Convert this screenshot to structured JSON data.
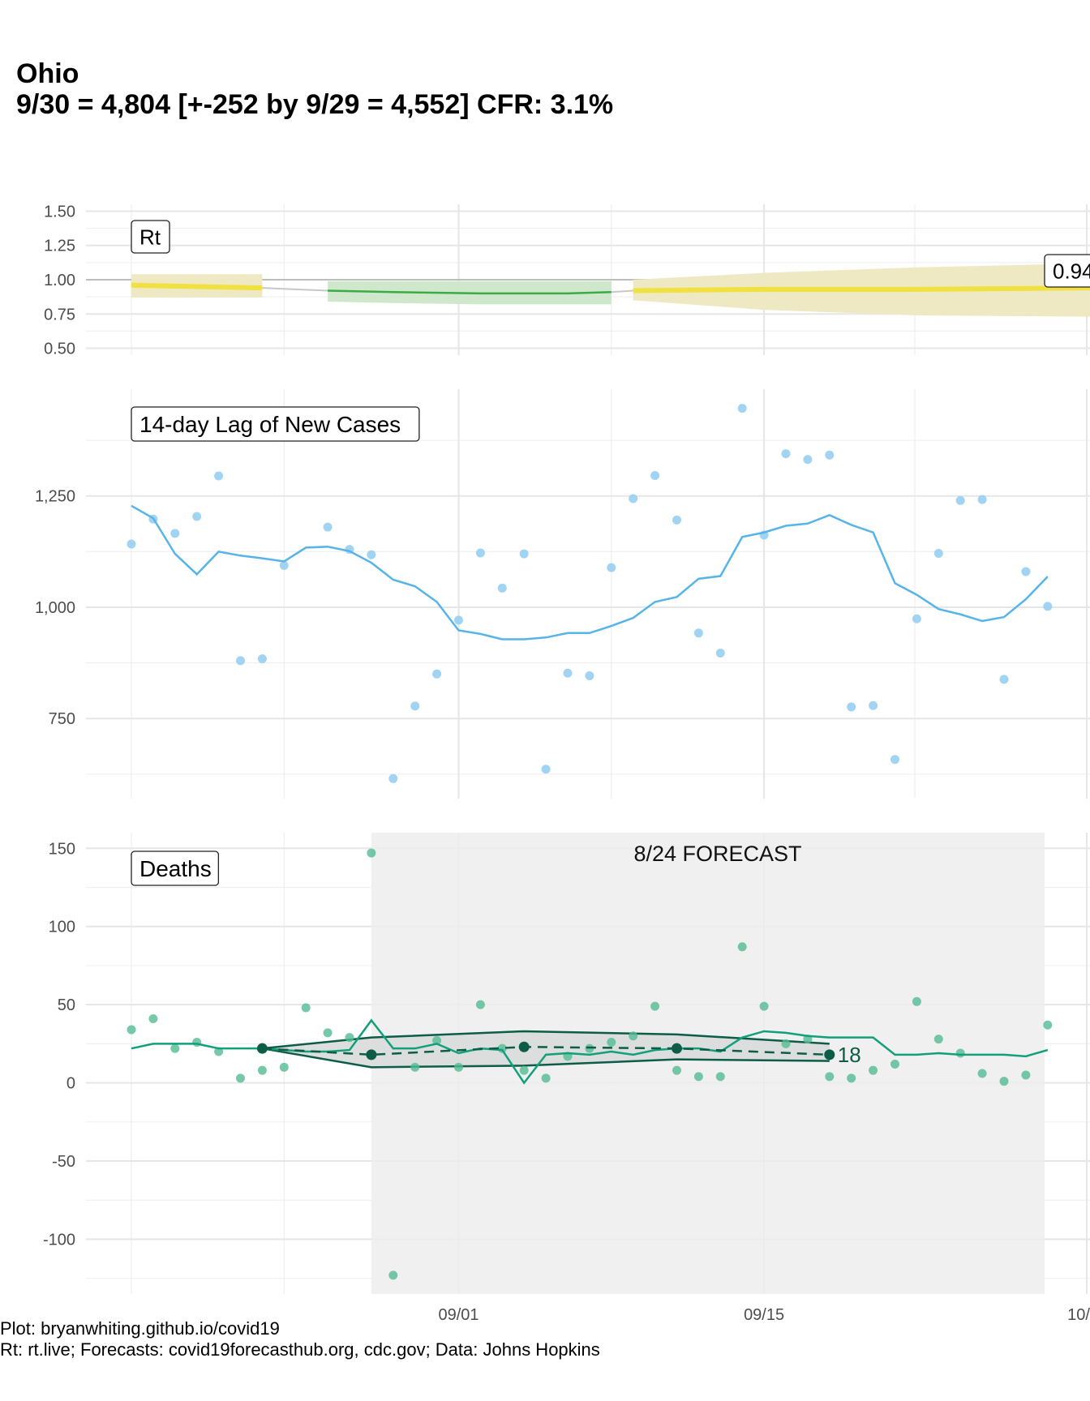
{
  "title": "Ohio",
  "subtitle": "9/30 = 4,804 [+-252 by 9/29 = 4,552] CFR: 3.1%",
  "caption_line1": "Plot: bryanwhiting.github.io/covid19",
  "caption_line2": "Rt: rt.live; Forecasts: covid19forecasthub.org, cdc.gov; Data: Johns Hopkins",
  "colors": {
    "rt_yellow": "#f0e040",
    "rt_yellow_band": "#efe9c3",
    "rt_green": "#3bab45",
    "rt_green_band": "#cfe8cc",
    "rt_gray": "#c8c8c8",
    "cases": "#56b4e9",
    "cases_points": "#8fcdf0",
    "deaths": "#12a07a",
    "deaths_points": "#52bb93",
    "forecast": "#0d5c45",
    "forecast_band": "#d8dcda",
    "forecast_region": "#f0f0f0",
    "grid": "#e6e6e6"
  },
  "chart_data": [
    {
      "type": "line",
      "panel_label": "Rt",
      "end_label": "0.94",
      "x_start": "08/17",
      "ylim": [
        0.5,
        1.5
      ],
      "yticks": [
        "0.50",
        "0.75",
        "1.00",
        "1.25",
        "1.50"
      ],
      "reference_line": 1.0,
      "segments": [
        {
          "status": "uncertain",
          "color": "yellow",
          "x": [
            "08/17",
            "08/23"
          ],
          "y": [
            0.96,
            0.94
          ],
          "lower": [
            0.87,
            0.87
          ],
          "upper": [
            1.04,
            1.04
          ]
        },
        {
          "status": "gap",
          "color": "gray",
          "x": [
            "08/23",
            "08/26"
          ],
          "y": [
            0.94,
            0.92
          ]
        },
        {
          "status": "declining",
          "color": "green",
          "x": [
            "08/26",
            "08/29",
            "09/02",
            "09/06",
            "09/08"
          ],
          "y": [
            0.92,
            0.91,
            0.9,
            0.9,
            0.91
          ],
          "lower": [
            0.84,
            0.83,
            0.82,
            0.82,
            0.82
          ],
          "upper": [
            0.99,
            0.99,
            0.99,
            0.99,
            0.99
          ]
        },
        {
          "status": "gap",
          "color": "gray",
          "x": [
            "09/08",
            "09/09"
          ],
          "y": [
            0.91,
            0.92
          ]
        },
        {
          "status": "uncertain",
          "color": "yellow",
          "x": [
            "09/09",
            "09/15",
            "09/22",
            "09/30"
          ],
          "y": [
            0.92,
            0.93,
            0.93,
            0.94
          ],
          "lower": [
            0.85,
            0.78,
            0.74,
            0.73
          ],
          "upper": [
            1.0,
            1.05,
            1.09,
            1.12
          ]
        }
      ]
    },
    {
      "type": "line",
      "panel_label": "14-day Lag of New Cases",
      "ylim": [
        570,
        1490
      ],
      "yticks": [
        "750",
        "1,000",
        "1,250"
      ],
      "x_start": "08/17",
      "points": [
        1142,
        1198,
        1166,
        1204,
        1295,
        880,
        884,
        1094,
        null,
        1180,
        1130,
        1118,
        615,
        778,
        850,
        971,
        1122,
        1043,
        1120,
        636,
        852,
        846,
        1089,
        1244,
        1296,
        1196,
        942,
        897,
        1447,
        1162,
        1345,
        1332,
        1342,
        776,
        779,
        658,
        974,
        1121,
        1240,
        1242,
        838,
        1080,
        1002
      ],
      "line": [
        1228,
        1200,
        1120,
        1074,
        1125,
        1116,
        1110,
        1103,
        1134,
        1136,
        1126,
        1100,
        1062,
        1047,
        1012,
        948,
        940,
        928,
        928,
        932,
        942,
        942,
        958,
        976,
        1012,
        1023,
        1064,
        1070,
        1158,
        1168,
        1183,
        1188,
        1207,
        1185,
        1168,
        1054,
        1028,
        996,
        984,
        969,
        978,
        1018,
        1069
      ]
    },
    {
      "type": "line",
      "panel_label": "Deaths",
      "annotation": "8/24 FORECAST",
      "forecast_end_label": "18",
      "ylim": [
        -135,
        160
      ],
      "yticks": [
        "-100",
        "-50",
        "0",
        "50",
        "100",
        "150"
      ],
      "x_start": "08/17",
      "x_ticks": [
        "09/01",
        "09/15",
        "10/"
      ],
      "forecast_region": [
        "08/28",
        "09/28"
      ],
      "points": [
        34,
        41,
        22,
        26,
        20,
        3,
        8,
        10,
        48,
        32,
        29,
        147,
        -123,
        10,
        27,
        10,
        50,
        22,
        8,
        3,
        17,
        22,
        26,
        30,
        49,
        8,
        4,
        4,
        87,
        49,
        25,
        28,
        4,
        3,
        8,
        12,
        52,
        28,
        19,
        6,
        1,
        5,
        37
      ],
      "line": [
        22,
        25,
        25,
        25,
        22,
        22,
        22,
        21,
        20,
        20,
        21,
        40,
        22,
        22,
        25,
        19,
        22,
        21,
        0,
        18,
        19,
        18,
        20,
        18,
        21,
        22,
        22,
        20,
        29,
        33,
        32,
        30,
        29,
        29,
        29,
        18,
        18,
        19,
        18,
        18,
        18,
        17,
        21
      ],
      "forecast": {
        "x": [
          "08/23",
          "08/28",
          "09/04",
          "09/11",
          "09/18"
        ],
        "y": [
          22,
          18,
          23,
          22,
          18
        ],
        "lower": [
          22,
          10,
          11,
          15,
          14
        ],
        "upper": [
          22,
          29,
          33,
          31,
          25
        ]
      }
    }
  ]
}
